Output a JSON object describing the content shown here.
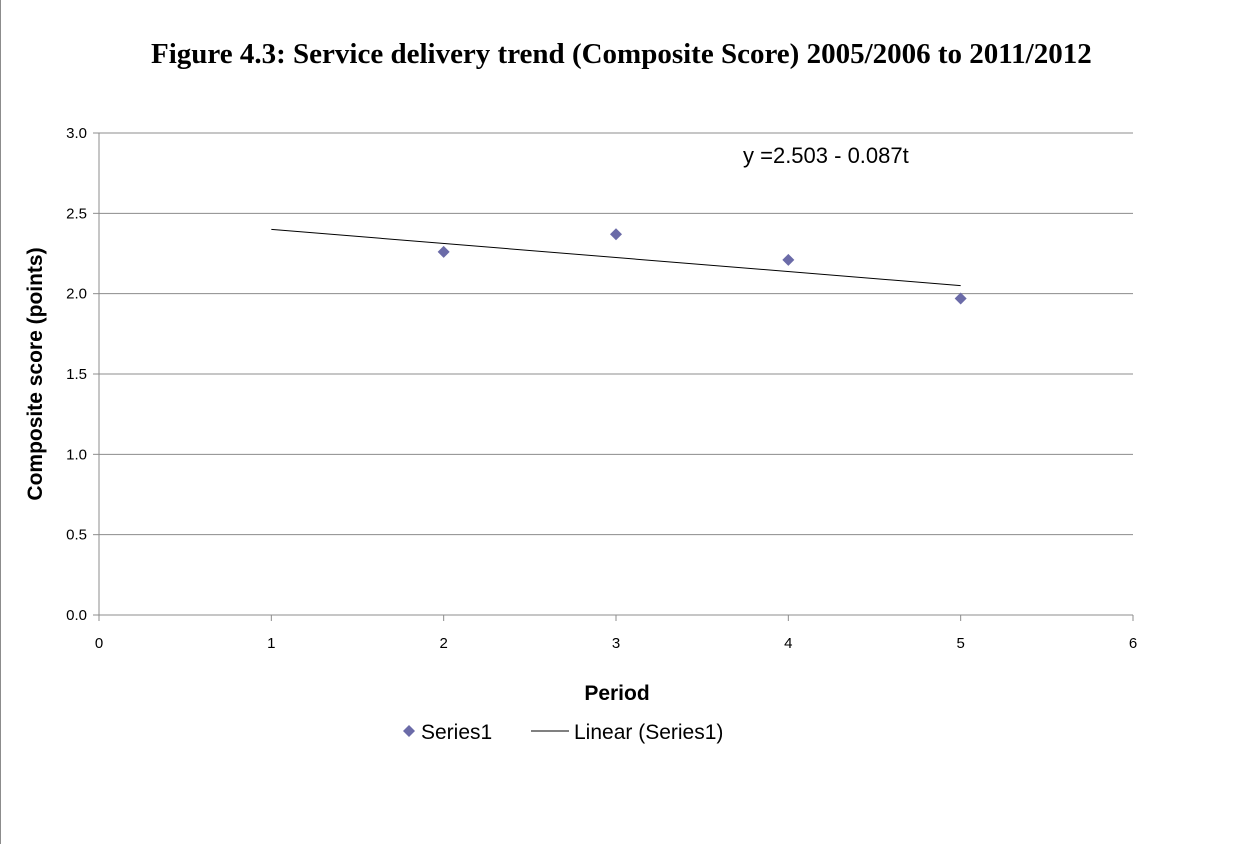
{
  "chart_data": {
    "type": "scatter",
    "title": "Figure 4.3: Service delivery trend (Composite Score) 2005/2006 to 2011/2012",
    "xlabel": "Period",
    "ylabel": "Composite score (points)",
    "xlim": [
      0,
      6
    ],
    "ylim": [
      0,
      3
    ],
    "x_ticks": [
      "0",
      "1",
      "2",
      "3",
      "4",
      "5",
      "6"
    ],
    "y_ticks": [
      "0.0",
      "0.5",
      "1.0",
      "1.5",
      "2.0",
      "2.5",
      "3.0"
    ],
    "grid": true,
    "series": [
      {
        "name": "Series1",
        "type": "scatter",
        "marker": "diamond",
        "color": "#6b6ba8",
        "x": [
          2,
          3,
          4,
          5
        ],
        "y": [
          2.26,
          2.37,
          2.21,
          1.97
        ]
      },
      {
        "name": "Linear (Series1)",
        "type": "line",
        "color": "#000000",
        "x": [
          1,
          5
        ],
        "y": [
          2.4,
          2.05
        ]
      }
    ],
    "annotation": "y =2.503 - 0.087t",
    "legend_position": "bottom"
  }
}
